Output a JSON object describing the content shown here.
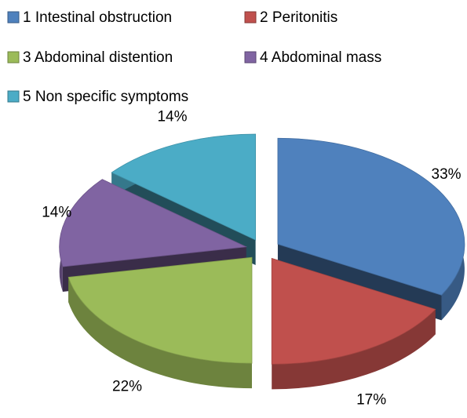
{
  "chart_data": {
    "type": "pie",
    "categories": [
      "1 Intestinal obstruction",
      "2 Peritonitis",
      "3 Abdominal distention",
      "4 Abdominal mass",
      "5 Non specific symptoms"
    ],
    "values": [
      33,
      17,
      22,
      14,
      14
    ],
    "value_labels": [
      "33%",
      "17%",
      "22%",
      "14%",
      "14%"
    ],
    "colors": [
      "#4f81bd",
      "#c0504d",
      "#9bbb59",
      "#8064a2",
      "#4bacc6"
    ],
    "legend": "top",
    "exploded": true,
    "three_d": true
  }
}
